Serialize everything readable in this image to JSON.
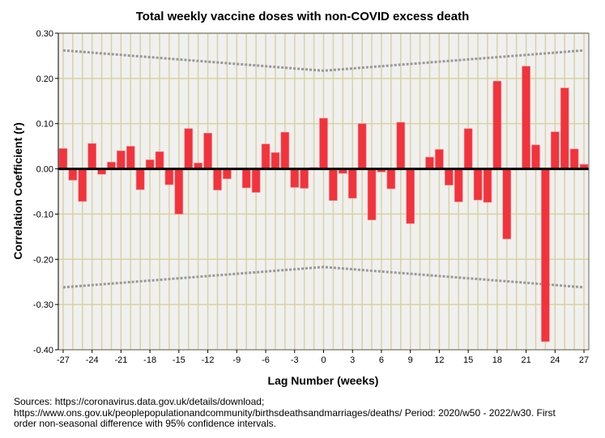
{
  "chart_data": {
    "type": "bar",
    "title": "Total weekly vaccine doses with non-COVID excess death",
    "xlabel": "Lag Number (weeks)",
    "ylabel": "Correlation Coefficient (r)",
    "ylim": [
      -0.4,
      0.3
    ],
    "yticks": [
      "0.30",
      "0.20",
      "0.10",
      "0.00",
      "-0.10",
      "-0.20",
      "-0.30",
      "-0.40"
    ],
    "xticks": [
      "-27",
      "-24",
      "-21",
      "-18",
      "-15",
      "-12",
      "-9",
      "-6",
      "-3",
      "0",
      "3",
      "6",
      "9",
      "12",
      "15",
      "18",
      "21",
      "24",
      "27"
    ],
    "grid": true,
    "lags": [
      -27,
      -26,
      -25,
      -24,
      -23,
      -22,
      -21,
      -20,
      -19,
      -18,
      -17,
      -16,
      -15,
      -14,
      -13,
      -12,
      -11,
      -10,
      -9,
      -8,
      -7,
      -6,
      -5,
      -4,
      -3,
      -2,
      -1,
      0,
      1,
      2,
      3,
      4,
      5,
      6,
      7,
      8,
      9,
      10,
      11,
      12,
      13,
      14,
      15,
      16,
      17,
      18,
      19,
      20,
      21,
      22,
      23,
      24,
      25,
      26,
      27
    ],
    "values": [
      0.045,
      -0.025,
      -0.072,
      0.056,
      -0.012,
      0.015,
      0.04,
      0.05,
      -0.046,
      0.02,
      0.038,
      -0.035,
      -0.1,
      0.089,
      0.013,
      0.079,
      -0.047,
      -0.022,
      0.0,
      -0.042,
      -0.052,
      0.055,
      0.036,
      0.081,
      -0.041,
      -0.043,
      0.003,
      0.112,
      -0.07,
      -0.01,
      -0.065,
      0.1,
      -0.113,
      -0.007,
      -0.044,
      0.103,
      -0.121,
      0.0,
      0.026,
      0.043,
      -0.036,
      -0.073,
      0.089,
      -0.069,
      -0.074,
      0.194,
      -0.155,
      0.0,
      0.227,
      0.053,
      -0.382,
      0.082,
      0.179,
      0.044,
      0.01
    ],
    "confidence_limits": {
      "at_lag_0": 0.217,
      "at_lag_27": 0.262
    },
    "colors": {
      "bar": "#f2333b",
      "grid": "#d8d3a0",
      "plot_bg": "#f0f0f0",
      "ci": "#999999"
    }
  },
  "sources": "Sources: https://coronavirus.data.gov.uk/details/download; https://www.ons.gov.uk/peoplepopulationandcommunity/birthsdeathsandmarriages/deaths/  Period: 2020/w50 - 2022/w30. First order non-seasonal difference with 95% confidence intervals."
}
